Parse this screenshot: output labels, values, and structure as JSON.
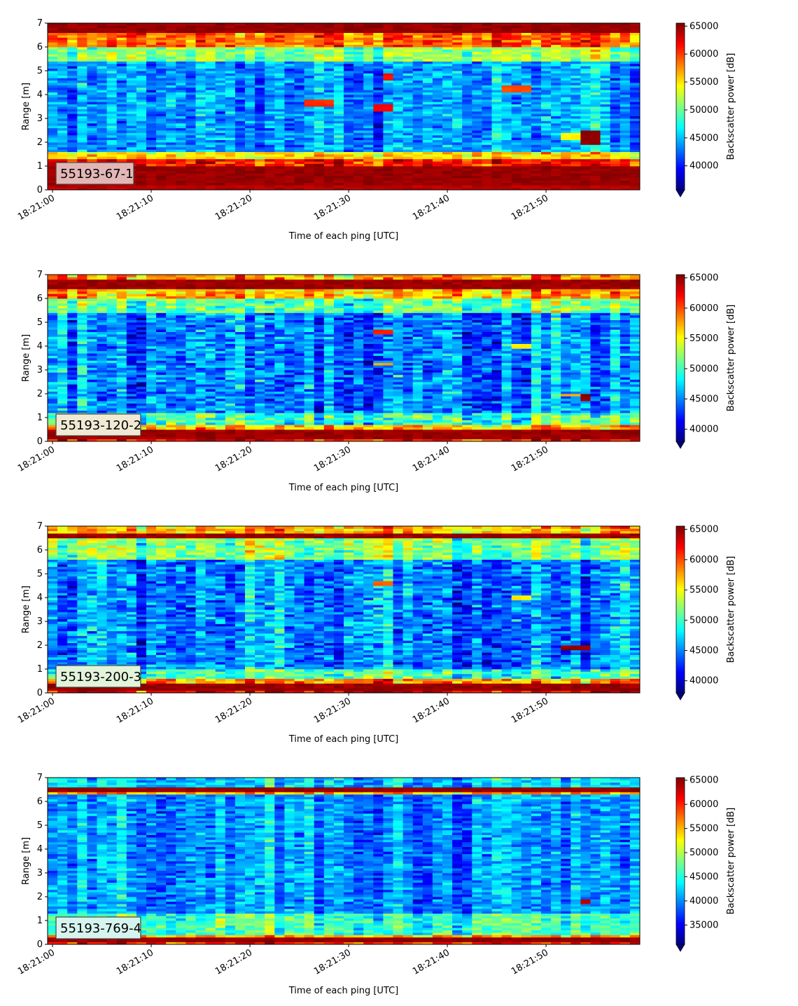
{
  "chart_data": [
    {
      "type": "heatmap",
      "label": "55193-67-1",
      "label_box_color": "#e3b6b6",
      "xlabel": "Time of each ping [UTC]",
      "ylabel": "Range [m]",
      "x_ticks": [
        "18:21:00",
        "18:21:10",
        "18:21:20",
        "18:21:30",
        "18:21:40",
        "18:21:50"
      ],
      "x_tick_seconds": [
        0,
        10,
        20,
        30,
        40,
        50
      ],
      "xlim_seconds": [
        -0.5,
        59.5
      ],
      "y_ticks": [
        0,
        1,
        2,
        3,
        4,
        5,
        6,
        7
      ],
      "ylim": [
        0,
        7
      ],
      "colorbar_label": "Backscatter power [dB]",
      "colorbar_ticks": [
        40000,
        45000,
        50000,
        55000,
        60000,
        65000
      ],
      "clim": [
        35700,
        65535
      ],
      "colormap": "jet",
      "bands": [
        {
          "from": 0,
          "to": 0.22,
          "value": 64500
        },
        {
          "from": 0.22,
          "to": 1.0,
          "value": 65535
        },
        {
          "from": 1.0,
          "to": 1.3,
          "value": 61500
        },
        {
          "from": 1.3,
          "to": 1.6,
          "value": 55000
        },
        {
          "from": 1.6,
          "to": 5.4,
          "value": 44000
        },
        {
          "from": 5.4,
          "to": 6.0,
          "value": 51000
        },
        {
          "from": 6.0,
          "to": 6.6,
          "value": 59000
        },
        {
          "from": 6.6,
          "to": 7.0,
          "value": 65535
        }
      ],
      "noise": 5000,
      "patches": [
        {
          "t0": 26,
          "t1": 28.5,
          "r0": 3.55,
          "r1": 3.85,
          "value": 61000
        },
        {
          "t0": 32.5,
          "t1": 34.5,
          "r0": 3.35,
          "r1": 3.65,
          "value": 62000
        },
        {
          "t0": 33.5,
          "t1": 35,
          "r0": 4.6,
          "r1": 4.9,
          "value": 62000
        },
        {
          "t0": 46,
          "t1": 49,
          "r0": 4.1,
          "r1": 4.4,
          "value": 60000
        },
        {
          "t0": 53.5,
          "t1": 55.5,
          "r0": 1.9,
          "r1": 2.5,
          "value": 65535
        },
        {
          "t0": 52,
          "t1": 53.5,
          "r0": 2.1,
          "r1": 2.4,
          "value": 55000
        }
      ]
    },
    {
      "type": "heatmap",
      "label": "55193-120-2",
      "label_box_color": "#f0ead4",
      "xlabel": "Time of each ping [UTC]",
      "ylabel": "Range [m]",
      "x_ticks": [
        "18:21:00",
        "18:21:10",
        "18:21:20",
        "18:21:30",
        "18:21:40",
        "18:21:50"
      ],
      "x_tick_seconds": [
        0,
        10,
        20,
        30,
        40,
        50
      ],
      "xlim_seconds": [
        -0.5,
        59.5
      ],
      "y_ticks": [
        0,
        1,
        2,
        3,
        4,
        5,
        6,
        7
      ],
      "ylim": [
        0,
        7
      ],
      "colorbar_label": "Backscatter power [dB]",
      "colorbar_ticks": [
        40000,
        45000,
        50000,
        55000,
        60000,
        65000
      ],
      "clim": [
        38000,
        65535
      ],
      "colormap": "jet",
      "bands": [
        {
          "from": 0,
          "to": 0.1,
          "value": 62000
        },
        {
          "from": 0.1,
          "to": 0.5,
          "value": 65535
        },
        {
          "from": 0.5,
          "to": 0.75,
          "value": 57000
        },
        {
          "from": 0.75,
          "to": 1.2,
          "value": 50000
        },
        {
          "from": 1.2,
          "to": 5.4,
          "value": 45000
        },
        {
          "from": 5.4,
          "to": 6.0,
          "value": 51000
        },
        {
          "from": 6.0,
          "to": 6.45,
          "value": 57000
        },
        {
          "from": 6.45,
          "to": 6.8,
          "value": 65535
        },
        {
          "from": 6.8,
          "to": 7.0,
          "value": 58000
        }
      ],
      "noise": 5500,
      "patches": [
        {
          "t0": 32.5,
          "t1": 35,
          "r0": 4.5,
          "r1": 4.75,
          "value": 62000
        },
        {
          "t0": 32.5,
          "t1": 35,
          "r0": 3.2,
          "r1": 3.35,
          "value": 58000
        },
        {
          "t0": 46.5,
          "t1": 49,
          "r0": 3.95,
          "r1": 4.1,
          "value": 56000
        },
        {
          "t0": 53.5,
          "t1": 54.5,
          "r0": 1.75,
          "r1": 2.0,
          "value": 65535
        },
        {
          "t0": 52,
          "t1": 53.5,
          "r0": 1.9,
          "r1": 2.05,
          "value": 58000
        }
      ]
    },
    {
      "type": "heatmap",
      "label": "55193-200-3",
      "label_box_color": "#e2f4da",
      "xlabel": "Time of each ping [UTC]",
      "ylabel": "Range [m]",
      "x_ticks": [
        "18:21:00",
        "18:21:10",
        "18:21:20",
        "18:21:30",
        "18:21:40",
        "18:21:50"
      ],
      "x_tick_seconds": [
        0,
        10,
        20,
        30,
        40,
        50
      ],
      "xlim_seconds": [
        -0.5,
        59.5
      ],
      "y_ticks": [
        0,
        1,
        2,
        3,
        4,
        5,
        6,
        7
      ],
      "ylim": [
        0,
        7
      ],
      "colorbar_label": "Backscatter power [dB]",
      "colorbar_ticks": [
        40000,
        45000,
        50000,
        55000,
        60000,
        65000
      ],
      "clim": [
        38000,
        65535
      ],
      "colormap": "jet",
      "bands": [
        {
          "from": 0,
          "to": 0.15,
          "value": 63000
        },
        {
          "from": 0.15,
          "to": 0.4,
          "value": 65535
        },
        {
          "from": 0.4,
          "to": 0.6,
          "value": 58000
        },
        {
          "from": 0.6,
          "to": 1.0,
          "value": 50000
        },
        {
          "from": 1.0,
          "to": 5.6,
          "value": 45000
        },
        {
          "from": 5.6,
          "to": 6.5,
          "value": 52000
        },
        {
          "from": 6.5,
          "to": 6.75,
          "value": 65535
        },
        {
          "from": 6.75,
          "to": 7.0,
          "value": 57000
        }
      ],
      "noise": 5500,
      "patches": [
        {
          "t0": 32.5,
          "t1": 35,
          "r0": 4.55,
          "r1": 4.7,
          "value": 60000
        },
        {
          "t0": 46.5,
          "t1": 48.5,
          "r0": 3.95,
          "r1": 4.1,
          "value": 56000
        },
        {
          "t0": 52,
          "t1": 55,
          "r0": 1.8,
          "r1": 2.0,
          "value": 65535
        }
      ]
    },
    {
      "type": "heatmap",
      "label": "55193-769-4",
      "label_box_color": "#d6f4ee",
      "xlabel": "Time of each ping [UTC]",
      "ylabel": "Range [m]",
      "x_ticks": [
        "18:21:00",
        "18:21:10",
        "18:21:20",
        "18:21:30",
        "18:21:40",
        "18:21:50"
      ],
      "x_tick_seconds": [
        0,
        10,
        20,
        30,
        40,
        50
      ],
      "xlim_seconds": [
        -0.5,
        59.5
      ],
      "y_ticks": [
        0,
        1,
        2,
        3,
        4,
        5,
        6,
        7
      ],
      "ylim": [
        0,
        7
      ],
      "colorbar_label": "Backscatter power [dB]",
      "colorbar_ticks": [
        35000,
        40000,
        45000,
        50000,
        55000,
        60000,
        65000
      ],
      "clim": [
        31000,
        65535
      ],
      "colormap": "jet",
      "bands": [
        {
          "from": 0,
          "to": 0.08,
          "value": 60000
        },
        {
          "from": 0.08,
          "to": 0.28,
          "value": 65535
        },
        {
          "from": 0.28,
          "to": 0.45,
          "value": 55000
        },
        {
          "from": 0.45,
          "to": 1.3,
          "value": 46000
        },
        {
          "from": 1.3,
          "to": 6.3,
          "value": 40000
        },
        {
          "from": 6.3,
          "to": 6.45,
          "value": 55000
        },
        {
          "from": 6.45,
          "to": 6.65,
          "value": 65535
        },
        {
          "from": 6.65,
          "to": 7.0,
          "value": 42000
        }
      ],
      "noise": 5500,
      "patches": [
        {
          "t0": 53.5,
          "t1": 54.5,
          "r0": 1.75,
          "r1": 1.95,
          "value": 64000
        }
      ]
    }
  ]
}
